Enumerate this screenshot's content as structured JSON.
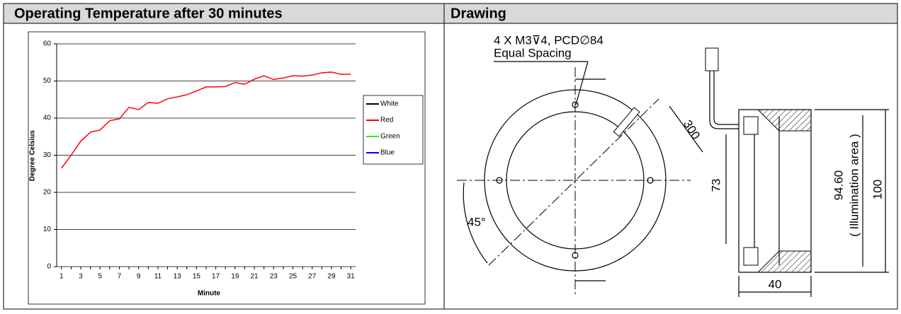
{
  "table": {
    "headers": [
      "Operating Temperature after 30 minutes",
      "Drawing"
    ]
  },
  "chart_data": {
    "type": "line",
    "x_label": "Minute",
    "y_label": "Degree Celsius",
    "categories": [
      1,
      null,
      3,
      null,
      5,
      null,
      7,
      null,
      9,
      null,
      11,
      null,
      13,
      null,
      15,
      null,
      17,
      null,
      19,
      null,
      21,
      null,
      23,
      null,
      25,
      null,
      27,
      null,
      29,
      null,
      31
    ],
    "series": [
      {
        "name": "White",
        "color": "#000000",
        "values": [
          null,
          null,
          null,
          null,
          null,
          null,
          null,
          null,
          null,
          null,
          null,
          null,
          null,
          null,
          null,
          null,
          null,
          null,
          null,
          null,
          null,
          null,
          null,
          null,
          null,
          null,
          null,
          null,
          null,
          null,
          null
        ]
      },
      {
        "name": "Red",
        "color": "#ff0000",
        "values": [
          26.5,
          30,
          33.8,
          36.2,
          36.8,
          39.3,
          39.8,
          42.9,
          42.3,
          44.2,
          44,
          45.2,
          45.7,
          46.3,
          47.3,
          48.4,
          48.4,
          48.5,
          49.6,
          49.1,
          50.5,
          51.4,
          50.4,
          50.8,
          51.4,
          51.3,
          51.6,
          52.2,
          52.4,
          51.8,
          51.8
        ]
      },
      {
        "name": "Green",
        "color": "#00ff00",
        "values": [
          null,
          null,
          null,
          null,
          null,
          null,
          null,
          null,
          null,
          null,
          null,
          null,
          null,
          null,
          null,
          null,
          null,
          null,
          null,
          null,
          null,
          null,
          null,
          null,
          null,
          null,
          null,
          null,
          null,
          null,
          null
        ]
      },
      {
        "name": "Blue",
        "color": "#0000ff",
        "values": [
          null,
          null,
          null,
          null,
          null,
          null,
          null,
          null,
          null,
          null,
          null,
          null,
          null,
          null,
          null,
          null,
          null,
          null,
          null,
          null,
          null,
          null,
          null,
          null,
          null,
          null,
          null,
          null,
          null,
          null,
          null
        ]
      }
    ],
    "ylim": [
      0,
      60
    ],
    "yticks": [
      0,
      10,
      20,
      30,
      40,
      50,
      60
    ],
    "grid": true,
    "legend": "right"
  },
  "drawing": {
    "hole_spec": "4 X M3⊽4, PCD∅84",
    "spacing": "Equal Spacing",
    "cable": "300",
    "angle": "45°",
    "inner": "73",
    "illum": "94.60",
    "illum_label": "( Illumination area )",
    "outer": "100",
    "depth": "40"
  }
}
